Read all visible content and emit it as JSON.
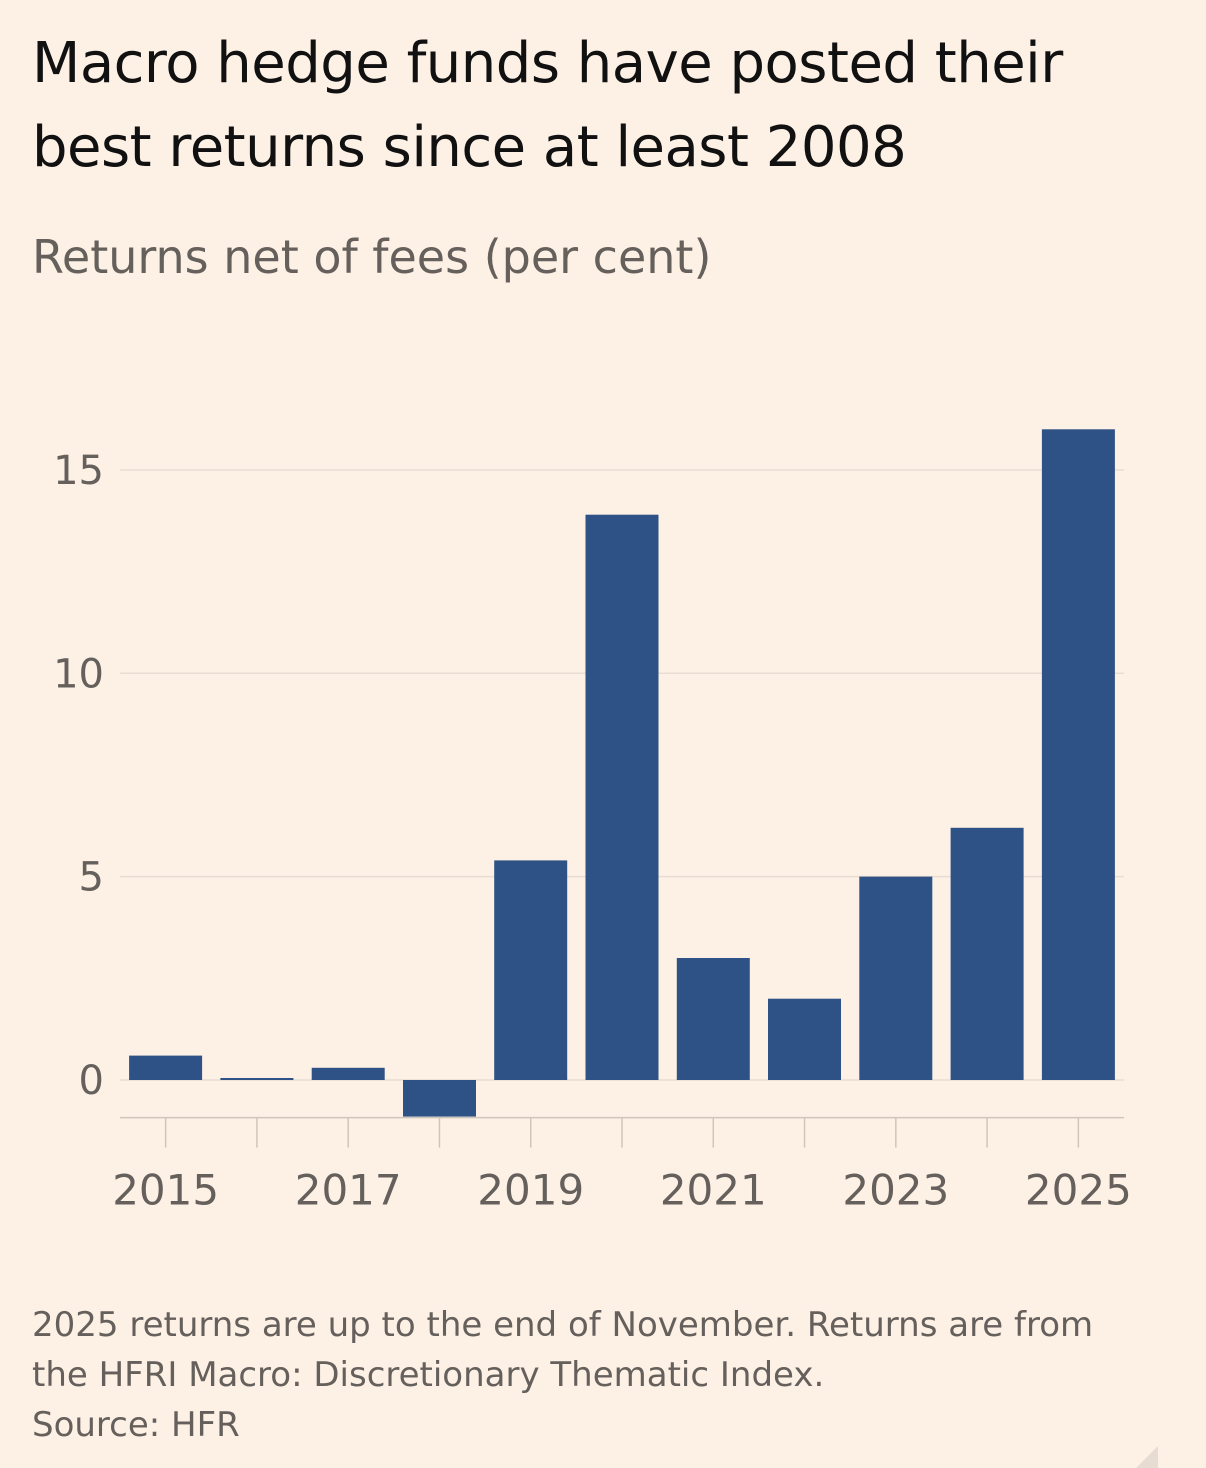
{
  "chart_data": {
    "type": "bar",
    "title": "Macro hedge funds have posted their best returns since at least 2008",
    "subtitle": "Returns net of fees (per cent)",
    "categories": [
      "2015",
      "2016",
      "2017",
      "2018",
      "2019",
      "2020",
      "2021",
      "2022",
      "2023",
      "2024",
      "2025"
    ],
    "values": [
      0.6,
      0.05,
      0.3,
      -0.9,
      5.4,
      13.9,
      3.0,
      2.0,
      5.0,
      6.2,
      16.0
    ],
    "x_tick_labels": [
      "2015",
      "2017",
      "2019",
      "2021",
      "2023",
      "2025"
    ],
    "y_ticks": [
      0,
      5,
      10,
      15
    ],
    "ylim": [
      -0.9,
      16
    ],
    "xlabel": "",
    "ylabel": "",
    "grid": true,
    "bar_color": "#2f5286",
    "notes": [
      "2025 returns are up to the end of November. Returns are from",
      "the HFRI Macro: Discretionary Thematic Index.",
      "Source: HFR"
    ]
  },
  "colors": {
    "background": "#fdf1e6",
    "bar": "#2f5286",
    "gridline": "#e8ddd2",
    "axis_text": "#66605c",
    "title": "#111111"
  }
}
